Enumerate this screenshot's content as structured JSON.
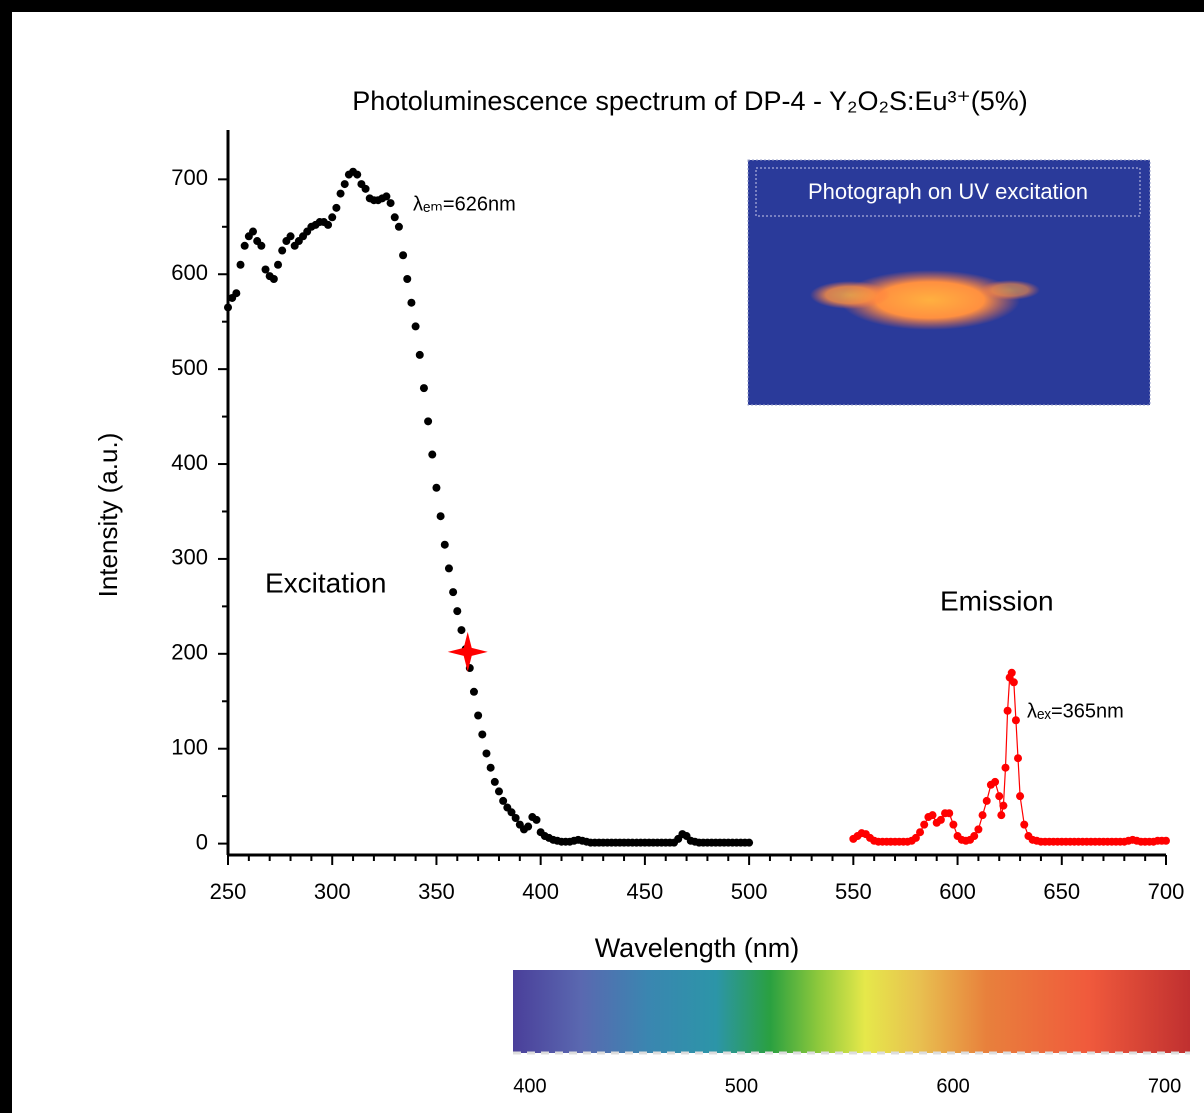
{
  "chart_data": {
    "type": "scatter",
    "title": "Photoluminescence spectrum of DP-4 - Y₂O₂S:Eu³⁺(5%)",
    "xlabel": "Wavelength (nm)",
    "ylabel": "Intensity (a.u.)",
    "xlim": [
      250,
      700
    ],
    "xticks": [
      250,
      300,
      350,
      400,
      450,
      500,
      550,
      600,
      650,
      700
    ],
    "xminor": 4,
    "ylim": [
      -12,
      752
    ],
    "yticks": [
      0,
      100,
      200,
      300,
      400,
      500,
      600,
      700
    ],
    "yminor": 1,
    "annotations": [
      "Excitation",
      "Emission",
      "λₑₘ=626nm",
      "λₑₓ=365nm"
    ],
    "highlight": {
      "x": 365,
      "y": 202,
      "color": "#ff0000"
    },
    "inset_label": "Photograph on  UV excitation",
    "series": [
      {
        "name": "Excitation",
        "color": "#000000",
        "x": [
          250,
          252,
          254,
          256,
          258,
          260,
          262,
          264,
          266,
          268,
          270,
          272,
          274,
          276,
          278,
          280,
          282,
          284,
          286,
          288,
          290,
          292,
          294,
          296,
          298,
          300,
          302,
          304,
          306,
          308,
          310,
          312,
          314,
          316,
          318,
          320,
          322,
          324,
          326,
          328,
          330,
          332,
          334,
          336,
          338,
          340,
          342,
          344,
          346,
          348,
          350,
          352,
          354,
          356,
          358,
          360,
          362,
          364,
          366,
          368,
          370,
          372,
          374,
          376,
          378,
          380,
          382,
          384,
          386,
          388,
          390,
          392,
          394,
          396,
          398,
          400,
          402,
          404,
          406,
          408,
          410,
          412,
          414,
          416,
          418,
          420,
          422,
          424,
          426,
          428,
          430,
          432,
          434,
          436,
          438,
          440,
          442,
          444,
          446,
          448,
          450,
          452,
          454,
          456,
          458,
          460,
          462,
          464,
          466,
          468,
          470,
          472,
          474,
          476,
          478,
          480,
          482,
          484,
          486,
          488,
          490,
          492,
          494,
          496,
          498,
          500
        ],
        "values": [
          565,
          575,
          580,
          610,
          630,
          640,
          645,
          635,
          630,
          605,
          598,
          595,
          610,
          625,
          635,
          640,
          630,
          635,
          640,
          645,
          650,
          652,
          655,
          655,
          652,
          660,
          670,
          685,
          695,
          705,
          708,
          705,
          695,
          690,
          680,
          678,
          678,
          680,
          682,
          675,
          660,
          650,
          620,
          595,
          570,
          545,
          515,
          480,
          445,
          410,
          375,
          345,
          315,
          290,
          265,
          245,
          225,
          205,
          185,
          160,
          135,
          115,
          95,
          80,
          65,
          55,
          45,
          38,
          33,
          27,
          20,
          15,
          18,
          28,
          25,
          12,
          8,
          6,
          4,
          3,
          2,
          2,
          2,
          3,
          4,
          3,
          2,
          1,
          1,
          1,
          1,
          1,
          1,
          1,
          1,
          1,
          1,
          1,
          1,
          1,
          1,
          1,
          1,
          1,
          1,
          1,
          1,
          1,
          5,
          10,
          8,
          3,
          2,
          1,
          1,
          1,
          1,
          1,
          1,
          1,
          1,
          1,
          1,
          1,
          1,
          1
        ]
      },
      {
        "name": "Emission",
        "color": "#ff0000",
        "x": [
          550,
          552,
          554,
          556,
          558,
          560,
          562,
          564,
          566,
          568,
          570,
          572,
          574,
          576,
          578,
          580,
          582,
          584,
          586,
          588,
          590,
          592,
          594,
          596,
          598,
          600,
          602,
          604,
          606,
          608,
          610,
          612,
          614,
          616,
          618,
          620,
          621,
          622,
          623,
          624,
          625,
          626,
          627,
          628,
          629,
          630,
          632,
          634,
          636,
          638,
          640,
          642,
          644,
          646,
          648,
          650,
          652,
          654,
          656,
          658,
          660,
          662,
          664,
          666,
          668,
          670,
          672,
          674,
          676,
          678,
          680,
          682,
          684,
          686,
          688,
          690,
          692,
          694,
          696,
          698,
          700
        ],
        "values": [
          5,
          8,
          11,
          10,
          6,
          3,
          2,
          2,
          2,
          2,
          2,
          2,
          2,
          2,
          3,
          6,
          12,
          20,
          28,
          30,
          22,
          25,
          32,
          32,
          20,
          8,
          4,
          3,
          4,
          8,
          15,
          30,
          45,
          62,
          65,
          50,
          30,
          40,
          80,
          140,
          175,
          180,
          170,
          130,
          90,
          50,
          20,
          8,
          4,
          3,
          2,
          2,
          2,
          2,
          2,
          2,
          2,
          2,
          2,
          2,
          2,
          2,
          2,
          2,
          2,
          2,
          2,
          2,
          2,
          2,
          2,
          3,
          4,
          3,
          2,
          2,
          2,
          2,
          3,
          3,
          3
        ]
      }
    ],
    "spectrum_bar": {
      "xlim": [
        392,
        712
      ],
      "xticks": [
        400,
        500,
        600,
        700
      ]
    }
  }
}
